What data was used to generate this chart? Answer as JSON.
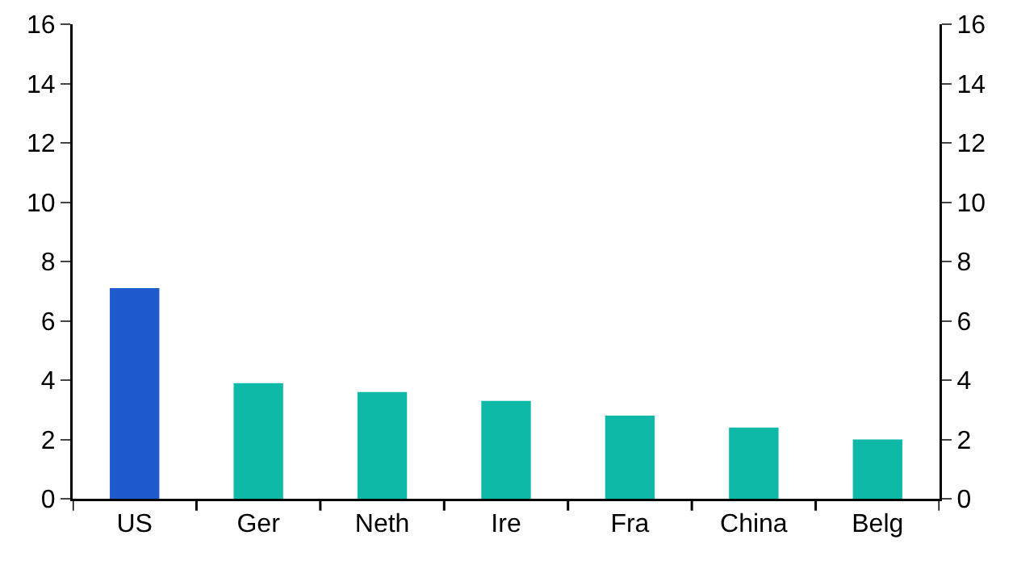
{
  "chart_data": {
    "type": "bar",
    "categories": [
      "US",
      "Ger",
      "Neth",
      "Ire",
      "Fra",
      "China",
      "Belg"
    ],
    "values": [
      7.1,
      3.9,
      3.6,
      3.3,
      2.8,
      2.4,
      2.0
    ],
    "colors": [
      "#1f5bcc",
      "#0fb9a8",
      "#0fb9a8",
      "#0fb9a8",
      "#0fb9a8",
      "#0fb9a8",
      "#0fb9a8"
    ],
    "ylim": [
      0,
      16
    ],
    "yticks": [
      0,
      2,
      4,
      6,
      8,
      10,
      12,
      14,
      16
    ],
    "y2lim": [
      0,
      16
    ],
    "y2ticks": [
      0,
      2,
      4,
      6,
      8,
      10,
      12,
      14,
      16
    ],
    "grid": false
  }
}
